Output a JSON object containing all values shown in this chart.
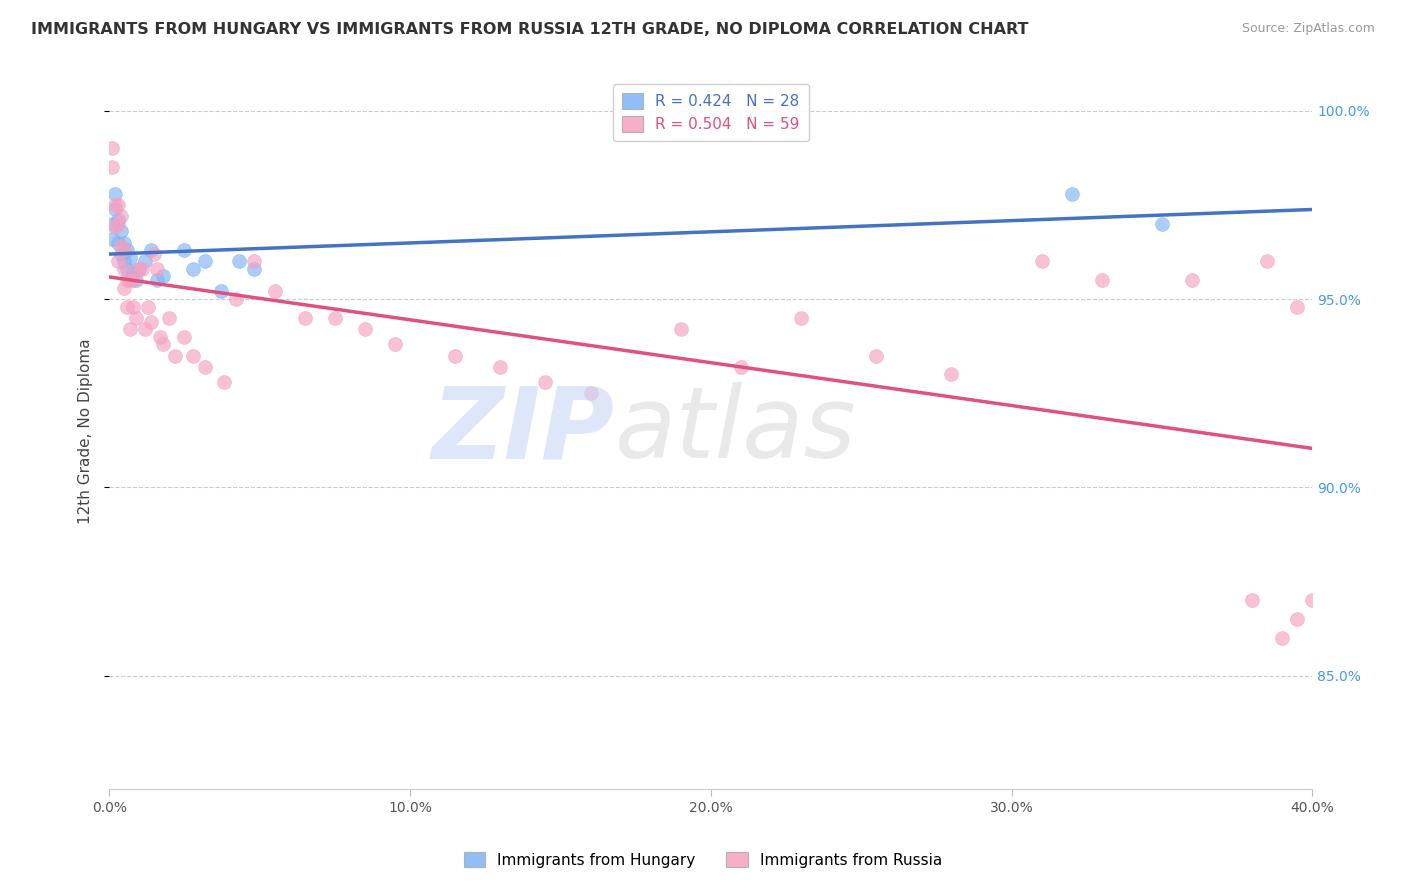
{
  "title": "IMMIGRANTS FROM HUNGARY VS IMMIGRANTS FROM RUSSIA 12TH GRADE, NO DIPLOMA CORRELATION CHART",
  "source": "Source: ZipAtlas.com",
  "ylabel_label": "12th Grade, No Diploma",
  "legend_hungary": "Immigrants from Hungary",
  "legend_russia": "Immigrants from Russia",
  "r_hungary": 0.424,
  "n_hungary": 28,
  "r_russia": 0.504,
  "n_russia": 59,
  "hungary_color": "#7EB3F5",
  "russia_color": "#F5A0C0",
  "hungary_line_color": "#4472C4",
  "russia_line_color": "#E05080",
  "xlim": [
    0.0,
    0.4
  ],
  "ylim": [
    0.82,
    1.01
  ],
  "xticks": [
    0.0,
    0.1,
    0.2,
    0.3,
    0.4
  ],
  "xticklabels": [
    "0.0%",
    "10.0%",
    "20.0%",
    "30.0%",
    "40.0%"
  ],
  "yticks": [
    0.85,
    0.9,
    0.95,
    1.0
  ],
  "yticklabels": [
    "85.0%",
    "90.0%",
    "95.0%",
    "100.0%"
  ],
  "hungary_x": [
    0.001,
    0.001,
    0.002,
    0.002,
    0.003,
    0.003,
    0.004,
    0.004,
    0.005,
    0.005,
    0.006,
    0.006,
    0.007,
    0.008,
    0.009,
    0.01,
    0.012,
    0.014,
    0.016,
    0.018,
    0.025,
    0.028,
    0.032,
    0.037,
    0.043,
    0.048,
    0.32,
    0.35
  ],
  "hungary_y": [
    0.97,
    0.966,
    0.974,
    0.978,
    0.971,
    0.965,
    0.968,
    0.962,
    0.965,
    0.96,
    0.963,
    0.958,
    0.961,
    0.957,
    0.955,
    0.958,
    0.96,
    0.963,
    0.955,
    0.956,
    0.963,
    0.958,
    0.96,
    0.952,
    0.96,
    0.958,
    0.978,
    0.97
  ],
  "russia_x": [
    0.001,
    0.001,
    0.002,
    0.002,
    0.003,
    0.003,
    0.003,
    0.004,
    0.004,
    0.005,
    0.005,
    0.005,
    0.006,
    0.006,
    0.007,
    0.007,
    0.008,
    0.008,
    0.009,
    0.01,
    0.011,
    0.012,
    0.013,
    0.014,
    0.015,
    0.016,
    0.017,
    0.018,
    0.02,
    0.022,
    0.025,
    0.028,
    0.032,
    0.038,
    0.042,
    0.048,
    0.055,
    0.065,
    0.075,
    0.085,
    0.095,
    0.115,
    0.13,
    0.145,
    0.16,
    0.19,
    0.21,
    0.23,
    0.255,
    0.28,
    0.31,
    0.33,
    0.36,
    0.385,
    0.395,
    0.38,
    0.395,
    0.39,
    0.4
  ],
  "russia_y": [
    0.99,
    0.985,
    0.975,
    0.969,
    0.975,
    0.97,
    0.96,
    0.972,
    0.964,
    0.963,
    0.958,
    0.953,
    0.955,
    0.948,
    0.955,
    0.942,
    0.955,
    0.948,
    0.945,
    0.958,
    0.958,
    0.942,
    0.948,
    0.944,
    0.962,
    0.958,
    0.94,
    0.938,
    0.945,
    0.935,
    0.94,
    0.935,
    0.932,
    0.928,
    0.95,
    0.96,
    0.952,
    0.945,
    0.945,
    0.942,
    0.938,
    0.935,
    0.932,
    0.928,
    0.925,
    0.942,
    0.932,
    0.945,
    0.935,
    0.93,
    0.96,
    0.955,
    0.955,
    0.96,
    0.948,
    0.87,
    0.865,
    0.86,
    0.87
  ]
}
